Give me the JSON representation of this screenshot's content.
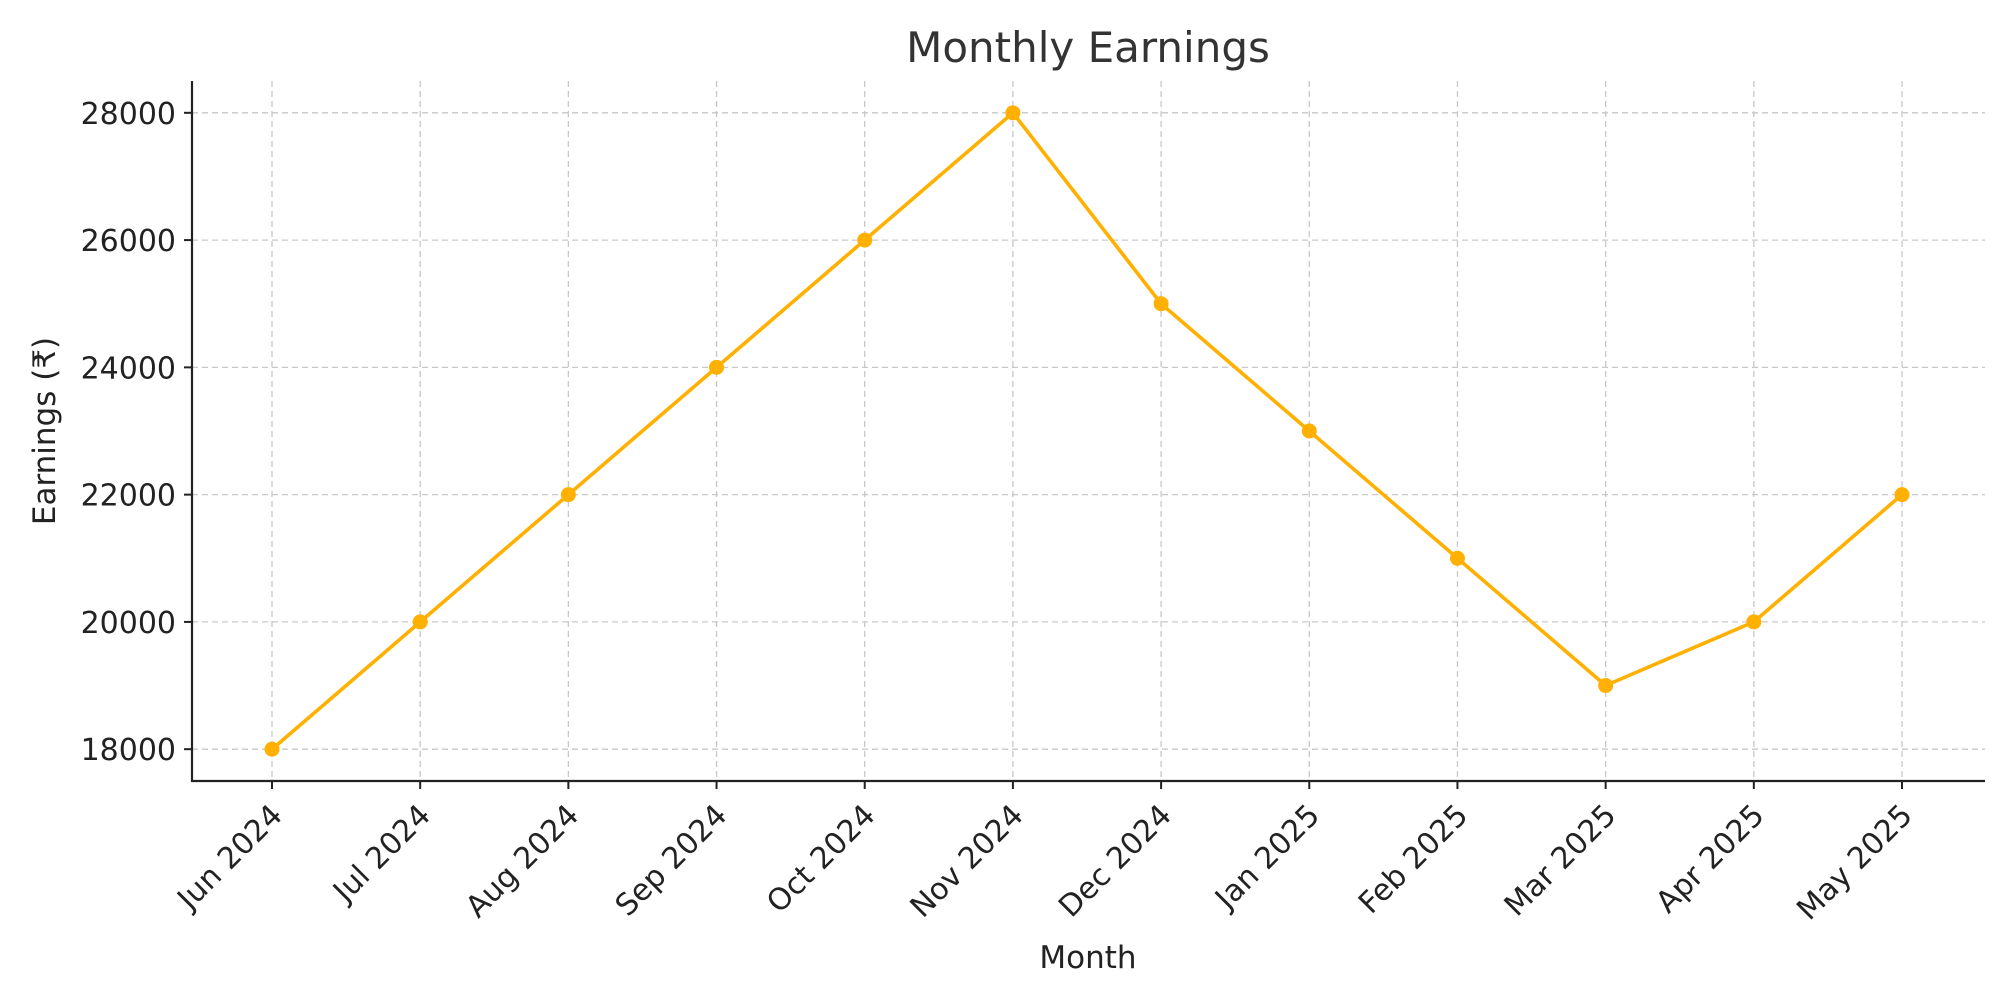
{
  "chart_data": {
    "type": "line",
    "title": "Monthly Earnings",
    "xlabel": "Month",
    "ylabel": "Earnings (₹)",
    "categories": [
      "Jun 2024",
      "Jul 2024",
      "Aug 2024",
      "Sep 2024",
      "Oct 2024",
      "Nov 2024",
      "Dec 2024",
      "Jan 2025",
      "Feb 2025",
      "Mar 2025",
      "Apr 2025",
      "May 2025"
    ],
    "series": [
      {
        "values": [
          18000,
          20000,
          22000,
          24000,
          26000,
          28000,
          25000,
          23000,
          21000,
          19000,
          20000,
          22000
        ],
        "color": "#FFB000"
      }
    ],
    "yticks": [
      18000,
      20000,
      22000,
      24000,
      26000,
      28000
    ],
    "ylim": [
      17500,
      28500
    ],
    "grid": true,
    "marker": "circle"
  }
}
